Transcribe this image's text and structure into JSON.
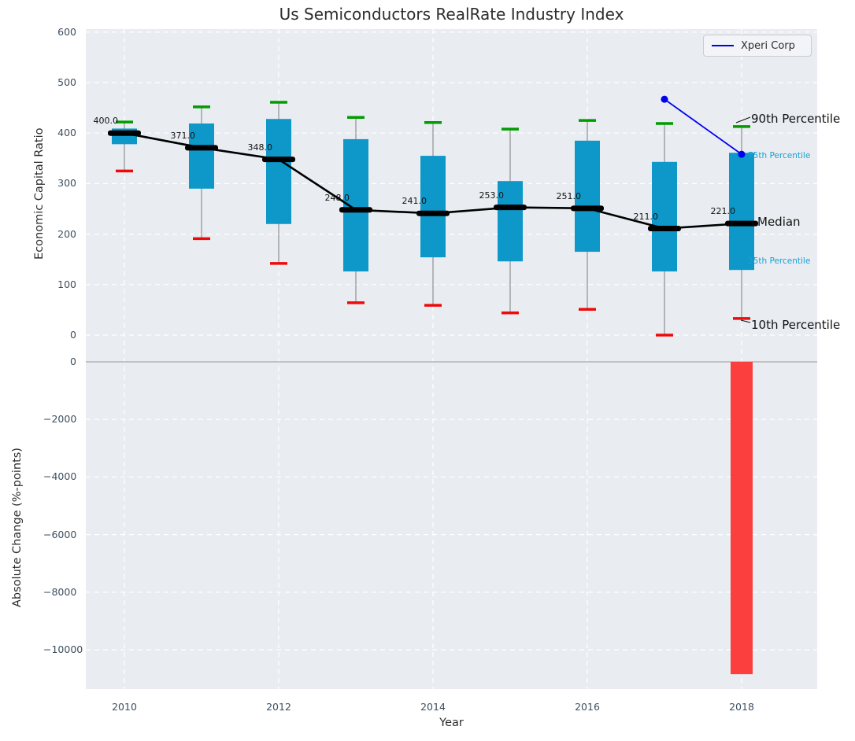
{
  "colors": {
    "box_fill": "#0d98c9",
    "cap_high": "#009c00",
    "cap_low": "#ee0a0a",
    "whisker": "#8f8f8f",
    "median": "#000000",
    "trend_line": "#000000",
    "company_line": "#0000ee",
    "bar_negative": "#fb3e3e",
    "plot_bg": "#e9edf1",
    "grid": "#ffffff",
    "tick_text": "#3d4e5e",
    "annotation_accent": "#18a0d4",
    "annotation_text": "#111111",
    "zero_line": "#b3b3b3"
  },
  "chart_data": [
    {
      "type": "boxplot",
      "title": "Us Semiconductors RealRate Industry Index",
      "ylabel": "Economic Capital Ratio",
      "ylim": [
        0,
        600
      ],
      "yticks": [
        0,
        100,
        200,
        300,
        400,
        500,
        600
      ],
      "grid": "on-white-dashed",
      "legend_position": "upper right",
      "boxes": [
        {
          "year": 2010,
          "p10": 325,
          "p25": 378,
          "median": 400,
          "p75": 409,
          "p90": 422,
          "label": "400.0"
        },
        {
          "year": 2011,
          "p10": 191,
          "p25": 290,
          "median": 371,
          "p75": 419,
          "p90": 452,
          "label": "371.0"
        },
        {
          "year": 2012,
          "p10": 142,
          "p25": 220,
          "median": 348,
          "p75": 428,
          "p90": 461,
          "label": "348.0"
        },
        {
          "year": 2013,
          "p10": 64,
          "p25": 126,
          "median": 248,
          "p75": 388,
          "p90": 431,
          "label": "248.0"
        },
        {
          "year": 2014,
          "p10": 59,
          "p25": 154,
          "median": 241,
          "p75": 355,
          "p90": 421,
          "label": "241.0"
        },
        {
          "year": 2015,
          "p10": 44,
          "p25": 146,
          "median": 253,
          "p75": 305,
          "p90": 408,
          "label": "253.0"
        },
        {
          "year": 2016,
          "p10": 51,
          "p25": 165,
          "median": 251,
          "p75": 385,
          "p90": 425,
          "label": "251.0"
        },
        {
          "year": 2017,
          "p10": 0,
          "p25": 126,
          "median": 211,
          "p75": 343,
          "p90": 419,
          "label": "211.0"
        },
        {
          "year": 2018,
          "p10": 33,
          "p25": 129,
          "median": 221,
          "p75": 361,
          "p90": 413,
          "label": "221.0"
        }
      ],
      "series": [
        {
          "name": "Xperi Corp",
          "type": "line",
          "x": [
            2017,
            2018
          ],
          "y": [
            467,
            358
          ]
        }
      ],
      "annotations": [
        {
          "text": "90th Percentile",
          "style": "large",
          "x": 954,
          "y": 142
        },
        {
          "text": "75th Percentile",
          "style": "small-accent",
          "x": 950,
          "y": 192
        },
        {
          "text": "Median",
          "style": "large",
          "x": 962,
          "y": 273
        },
        {
          "text": "25th Percentile",
          "style": "small-accent",
          "x": 950,
          "y": 326
        },
        {
          "text": "10th Percentile",
          "style": "large",
          "x": 954,
          "y": 404
        }
      ]
    },
    {
      "type": "bar",
      "ylabel": "Absolute Change (%-points)",
      "xlabel": "Year",
      "ylim": [
        500,
        -11400
      ],
      "yticks": [
        0,
        -2000,
        -4000,
        -6000,
        -8000,
        -10000
      ],
      "xticks": [
        2010,
        2012,
        2014,
        2016,
        2018
      ],
      "bars": [
        {
          "year": 2018,
          "value": -10850
        }
      ]
    }
  ]
}
